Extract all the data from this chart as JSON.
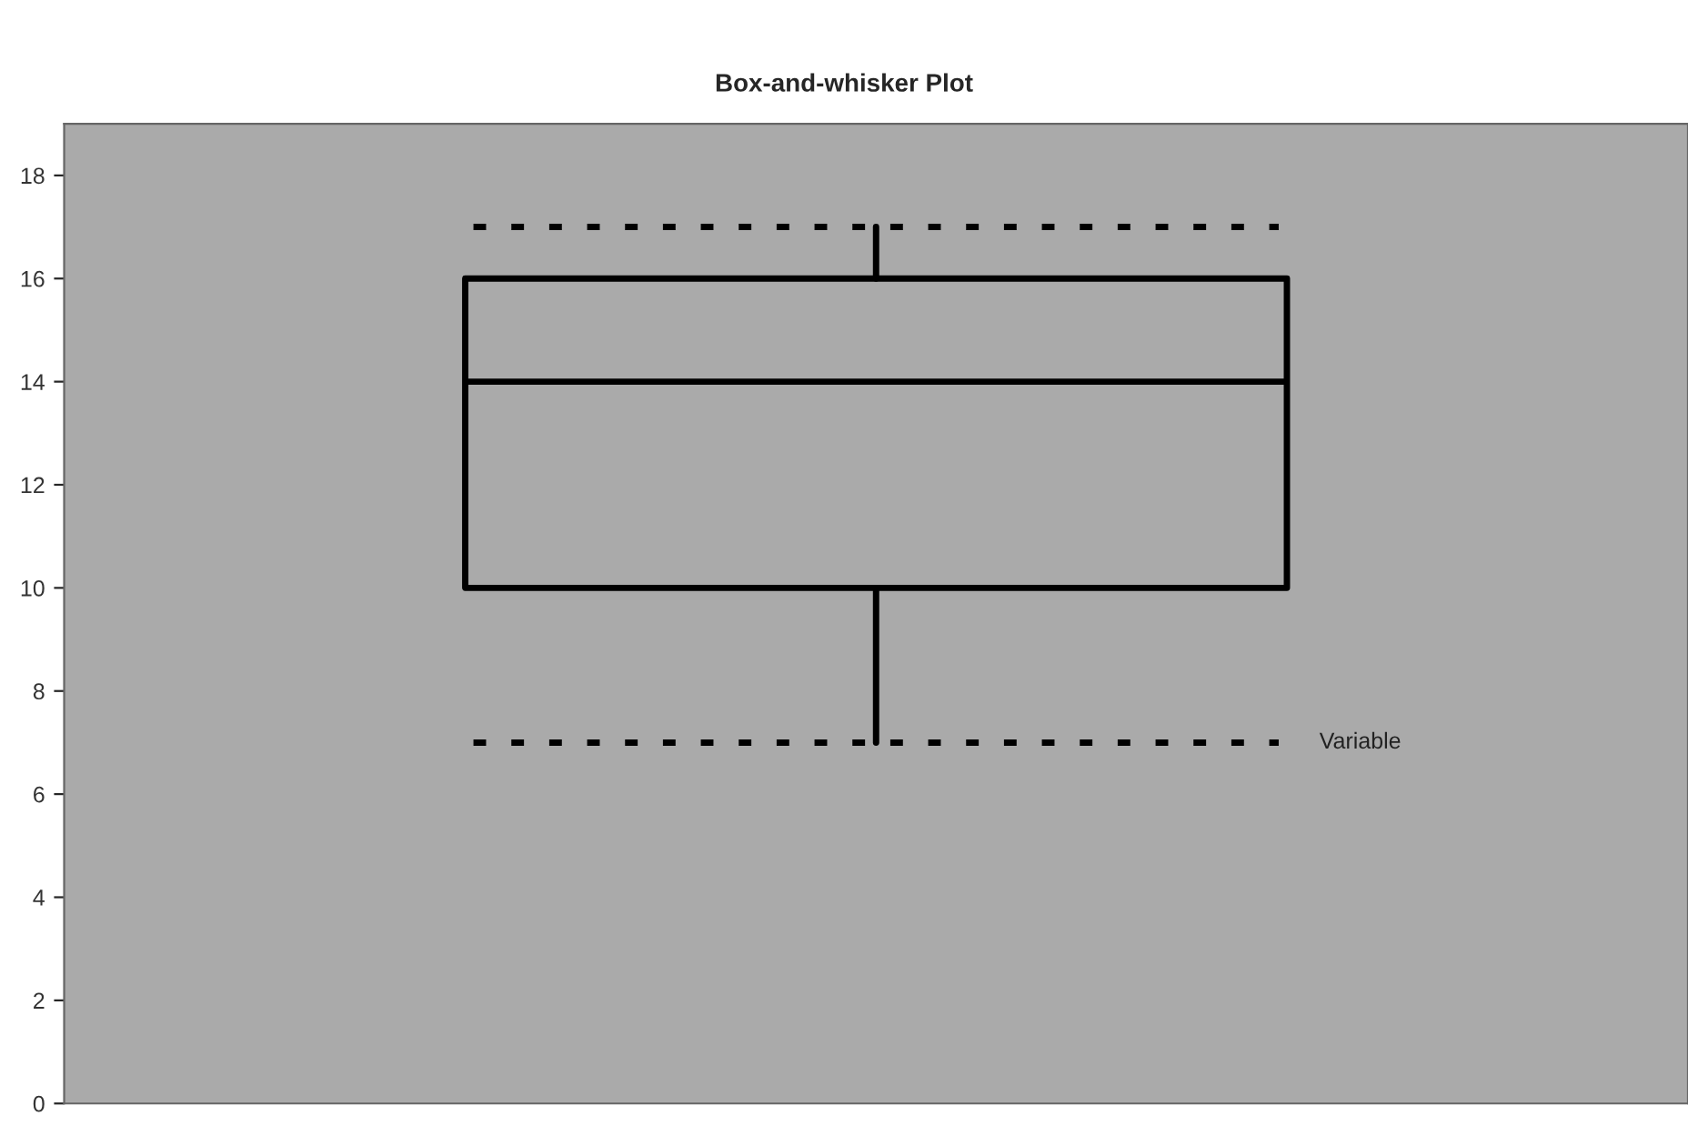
{
  "chart_data": {
    "type": "box",
    "title": "Box-and-whisker Plot",
    "categories": [
      null
    ],
    "series": [
      {
        "name": "Variable",
        "color": "#000000",
        "boxes": [
          {
            "low": 7,
            "q1": 10,
            "median": 14,
            "q3": 16,
            "high": 17
          }
        ]
      }
    ],
    "ylim": [
      0,
      19
    ],
    "yticks": [
      0,
      2,
      4,
      6,
      8,
      10,
      12,
      14,
      16,
      18
    ],
    "grid": false,
    "legend": false
  }
}
